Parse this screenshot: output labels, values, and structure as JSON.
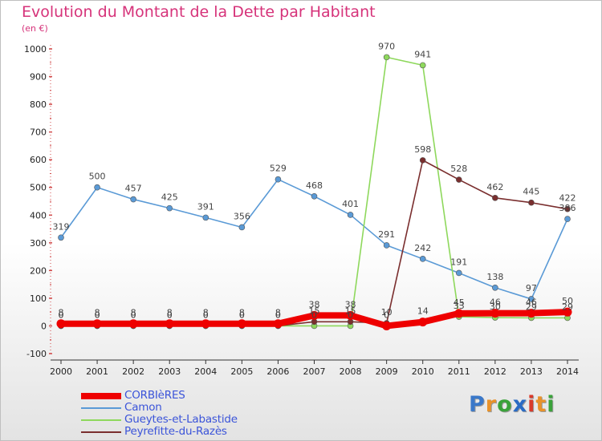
{
  "title": "Evolution du Montant de la Dette par Habitant",
  "unit": "(en €)",
  "logo_text": "Proxiti",
  "logo_colors": [
    "#3a78c9",
    "#e8922a",
    "#3aa23a",
    "#2a6bc4",
    "#d93a2a",
    "#e8922a",
    "#3aa23a"
  ],
  "chart_data": {
    "type": "line",
    "title": "Evolution du Montant de la Dette par Habitant",
    "subtitle": "(en €)",
    "xlabel": "",
    "ylabel": "",
    "x": [
      "2000",
      "2001",
      "2002",
      "2003",
      "2004",
      "2005",
      "2006",
      "2007",
      "2008",
      "2009",
      "2010",
      "2011",
      "2012",
      "2013",
      "2014"
    ],
    "ylim": [
      -100,
      1000
    ],
    "yticks": [
      "-100",
      "0",
      "100",
      "200",
      "300",
      "400",
      "500",
      "600",
      "700",
      "800",
      "900",
      "1000"
    ],
    "grid": false,
    "legend_position": "bottom-left",
    "series": [
      {
        "name": "Camon",
        "color": "#5a9ad6",
        "values": [
          319,
          500,
          457,
          425,
          391,
          356,
          529,
          468,
          401,
          291,
          242,
          191,
          138,
          97,
          386
        ],
        "labels": [
          "319",
          "500",
          "457",
          "425",
          "391",
          "356",
          "529",
          "468",
          "401",
          "291",
          "242",
          "191",
          "138",
          "97",
          "386"
        ]
      },
      {
        "name": "Gueytes-et-Labastide",
        "color": "#8ed85c",
        "values": [
          0,
          0,
          0,
          0,
          0,
          0,
          0,
          0,
          0,
          970,
          941,
          33,
          30,
          29,
          29
        ],
        "labels": [
          "0",
          "0",
          "0",
          "0",
          "0",
          "0",
          "0",
          "0",
          "0",
          "970",
          "941",
          "33",
          "30",
          "29",
          "29"
        ]
      },
      {
        "name": "Peyrefitte-du-Razès",
        "color": "#7a2e2e",
        "values": [
          0,
          0,
          0,
          0,
          0,
          0,
          0,
          15,
          15,
          10,
          598,
          528,
          462,
          445,
          422
        ],
        "labels": [
          "0",
          "0",
          "0",
          "0",
          "0",
          "0",
          "0",
          "15",
          "15",
          "10",
          "598",
          "528",
          "462",
          "445",
          "422"
        ]
      },
      {
        "name": "CORBIèRES",
        "color": "#ee0000",
        "values": [
          8,
          8,
          8,
          8,
          8,
          8,
          8,
          38,
          38,
          0,
          14,
          45,
          46,
          46,
          50
        ],
        "labels": [
          "8",
          "8",
          "8",
          "8",
          "8",
          "8",
          "8",
          "38",
          "38",
          "0",
          "14",
          "45",
          "46",
          "46",
          "50"
        ]
      }
    ],
    "legend": [
      "CORBIèRES",
      "Camon",
      "Gueytes-et-Labastide",
      "Peyrefitte-du-Razès"
    ]
  }
}
